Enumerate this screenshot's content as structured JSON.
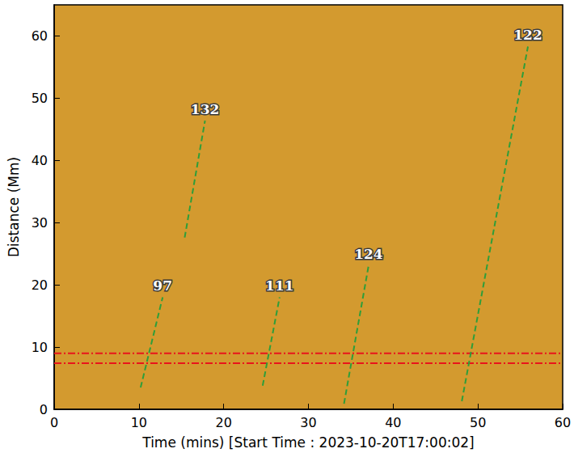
{
  "chart_data": {
    "type": "line",
    "xlabel": "Time (mins) [Start Time : 2023-10-20T17:00:02]",
    "ylabel": "Distance (Mm)",
    "xlim": [
      0,
      60
    ],
    "xticks": [
      0,
      10,
      20,
      30,
      40,
      50,
      60
    ],
    "ylim": [
      0,
      65
    ],
    "yticks": [
      0,
      10,
      20,
      30,
      40,
      50,
      60
    ],
    "grid": false,
    "series": [
      {
        "name": "97",
        "color": "#2e9e3a",
        "line_style": "dashed",
        "x": [
          10.2,
          12.8
        ],
        "values": [
          3.5,
          18.0
        ]
      },
      {
        "name": "132",
        "color": "#2e9e3a",
        "line_style": "dashed",
        "x": [
          15.4,
          17.8
        ],
        "values": [
          27.6,
          46.4
        ]
      },
      {
        "name": "111",
        "color": "#2e9e3a",
        "line_style": "dashed",
        "x": [
          24.6,
          26.6
        ],
        "values": [
          3.8,
          18.0
        ]
      },
      {
        "name": "124",
        "color": "#2e9e3a",
        "line_style": "dashed",
        "x": [
          34.2,
          37.1
        ],
        "values": [
          0.9,
          23.1
        ]
      },
      {
        "name": "122",
        "color": "#2e9e3a",
        "line_style": "dashed",
        "x": [
          48.1,
          55.9
        ],
        "values": [
          1.3,
          58.3
        ]
      },
      {
        "color": "#e8141c",
        "line_style": "dashdot",
        "x": [
          0,
          60
        ],
        "values": [
          7.4,
          7.4
        ]
      },
      {
        "color": "#e8141c",
        "line_style": "dashdot",
        "x": [
          0,
          60
        ],
        "values": [
          9.0,
          9.0
        ]
      }
    ]
  }
}
